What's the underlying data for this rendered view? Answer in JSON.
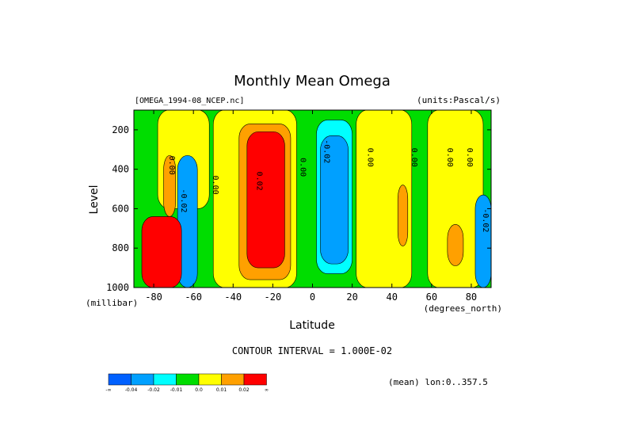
{
  "chart_data": {
    "type": "heatmap",
    "title": "Monthly Mean Omega",
    "dataset_label": "[OMEGA_1994-08_NCEP.nc]",
    "units_label": "(units:Pascal/s)",
    "xlabel": "Latitude",
    "xunits": "(degrees_north)",
    "ylabel": "Level",
    "yunits": "(millibar)",
    "x_ticks": [
      "-80",
      "-60",
      "-40",
      "-20",
      "0",
      "20",
      "40",
      "60",
      "80"
    ],
    "x_tick_values": [
      -80,
      -60,
      -40,
      -20,
      0,
      20,
      40,
      60,
      80
    ],
    "y_ticks": [
      "200",
      "400",
      "600",
      "800",
      "1000"
    ],
    "y_tick_values": [
      200,
      400,
      600,
      800,
      1000
    ],
    "xlim": [
      -90,
      90
    ],
    "ylim": [
      100,
      1000
    ],
    "y_inverted": true,
    "contour_interval_text": "CONTOUR INTERVAL = 1.000E-02",
    "subset_note": "(mean) lon:0..357.5",
    "contour_labels": [
      {
        "text": "0.00",
        "lat": -72,
        "lev": 380
      },
      {
        "text": "-0.02",
        "lat": -66,
        "lev": 560
      },
      {
        "text": "0.00",
        "lat": -50,
        "lev": 480
      },
      {
        "text": "0.02",
        "lat": -28,
        "lev": 460
      },
      {
        "text": "0.00",
        "lat": -6,
        "lev": 390
      },
      {
        "text": "-0.02",
        "lat": 6,
        "lev": 310
      },
      {
        "text": "0.00",
        "lat": 28,
        "lev": 340
      },
      {
        "text": "0.00",
        "lat": 50,
        "lev": 340
      },
      {
        "text": "0.00",
        "lat": 68,
        "lev": 340
      },
      {
        "text": "0.00",
        "lat": 78,
        "lev": 340
      },
      {
        "text": "-0.02",
        "lat": 86,
        "lev": 660
      }
    ],
    "colorbar": {
      "colors": [
        "#0060ff",
        "#00a0ff",
        "#00ffff",
        "#00dd00",
        "#ffff00",
        "#ffa000",
        "#ff0000"
      ],
      "tick_labels": [
        "-∞",
        "-0.04",
        "-0.02",
        "-0.01",
        "0.0",
        "0.01",
        "0.02",
        "∞"
      ]
    },
    "regions": [
      {
        "name": "yellow-band-sh-mid",
        "color": "#ffff00",
        "lat0": -78,
        "lat1": -52,
        "lev0": 100,
        "lev1": 600
      },
      {
        "name": "orange-sh-polar",
        "color": "#ffa000",
        "lat0": -75,
        "lat1": -69,
        "lev0": 330,
        "lev1": 640
      },
      {
        "name": "blue-sh-60",
        "color": "#00a0ff",
        "lat0": -68,
        "lat1": -58,
        "lev0": 330,
        "lev1": 1000
      },
      {
        "name": "yellow-subtropic-sh",
        "color": "#ffff00",
        "lat0": -50,
        "lat1": -8,
        "lev0": 100,
        "lev1": 1000
      },
      {
        "name": "orange-subtropic-sh",
        "color": "#ffa000",
        "lat0": -37,
        "lat1": -11,
        "lev0": 170,
        "lev1": 960
      },
      {
        "name": "red-subtropic-sh",
        "color": "#ff0000",
        "lat0": -33,
        "lat1": -14,
        "lev0": 210,
        "lev1": 900
      },
      {
        "name": "cyan-tropics",
        "color": "#00ffff",
        "lat0": 2,
        "lat1": 20,
        "lev0": 150,
        "lev1": 930
      },
      {
        "name": "blue-tropics",
        "color": "#00a0ff",
        "lat0": 4,
        "lat1": 18,
        "lev0": 230,
        "lev1": 880
      },
      {
        "name": "yellow-nh-sub",
        "color": "#ffff00",
        "lat0": 22,
        "lat1": 50,
        "lev0": 100,
        "lev1": 1000
      },
      {
        "name": "orange-nh-45",
        "color": "#ffa000",
        "lat0": 43,
        "lat1": 48,
        "lev0": 480,
        "lev1": 790
      },
      {
        "name": "yellow-nh-mid",
        "color": "#ffff00",
        "lat0": 58,
        "lat1": 86,
        "lev0": 100,
        "lev1": 1000
      },
      {
        "name": "orange-nh-70",
        "color": "#ffa000",
        "lat0": 68,
        "lat1": 76,
        "lev0": 680,
        "lev1": 890
      },
      {
        "name": "blue-nh-polar",
        "color": "#00a0ff",
        "lat0": 82,
        "lat1": 90,
        "lev0": 530,
        "lev1": 1000
      },
      {
        "name": "red-antarctic-surface",
        "color": "#ff0000",
        "lat0": -86,
        "lat1": -66,
        "lev0": 640,
        "lev1": 1000
      }
    ]
  }
}
